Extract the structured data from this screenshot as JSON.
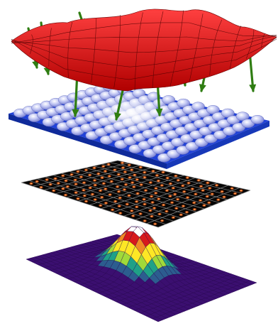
{
  "figure": {
    "layers": [
      {
        "id": "wavefront",
        "kind": "distorted-surface",
        "color": "#e01818",
        "mesh_color": "#5a0000"
      },
      {
        "id": "lenslet-array",
        "kind": "microlens-array",
        "grid": 11,
        "plate_color": "#1f3fd0",
        "lens_color": "#a9b1f0",
        "center_glow": "#ffffff"
      },
      {
        "id": "spot-pattern",
        "kind": "sensor-image",
        "grid": 12,
        "background": "#060606",
        "gridline_color": "#8a8a8a",
        "spot_color": "#ff7a2a"
      },
      {
        "id": "reconstruction",
        "kind": "surface-plot",
        "colormap": [
          "#3b0f70",
          "#2c5d8f",
          "#1fa187",
          "#a0da39",
          "#fde725",
          "#f08a24",
          "#d7191c",
          "#ffffff"
        ]
      }
    ],
    "arrows": {
      "count": 13,
      "color": "#2f7d12",
      "direction": "down"
    }
  }
}
